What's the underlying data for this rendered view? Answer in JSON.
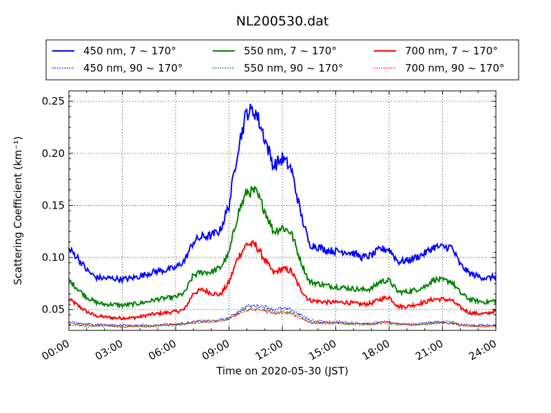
{
  "chart_data": {
    "type": "line",
    "title": "NL200530.dat",
    "xlabel": "Time on 2020-05-30 (JST)",
    "ylabel": "Scattering Coefficient (km⁻¹)",
    "xlim": [
      "00:00",
      "24:00"
    ],
    "ylim": [
      0.03,
      0.26
    ],
    "x_ticks": [
      "00:00",
      "03:00",
      "06:00",
      "09:00",
      "12:00",
      "15:00",
      "18:00",
      "21:00",
      "24:00"
    ],
    "y_ticks": [
      "0.05",
      "0.10",
      "0.15",
      "0.20",
      "0.25"
    ],
    "grid": true,
    "legend_position": "top",
    "x": [
      "00:00",
      "00:30",
      "01:00",
      "01:30",
      "02:00",
      "02:30",
      "03:00",
      "03:30",
      "04:00",
      "04:30",
      "05:00",
      "05:30",
      "06:00",
      "06:30",
      "07:00",
      "07:30",
      "08:00",
      "08:30",
      "09:00",
      "09:30",
      "10:00",
      "10:30",
      "11:00",
      "11:30",
      "12:00",
      "12:30",
      "13:00",
      "13:30",
      "14:00",
      "14:30",
      "15:00",
      "15:30",
      "16:00",
      "16:30",
      "17:00",
      "17:30",
      "18:00",
      "18:30",
      "19:00",
      "19:30",
      "20:00",
      "20:30",
      "21:00",
      "21:30",
      "22:00",
      "22:30",
      "23:00",
      "23:30",
      "24:00"
    ],
    "series": [
      {
        "name": "450 nm, 7 ~ 170°",
        "color": "#0000ff",
        "style": "solid",
        "values": [
          0.108,
          0.1,
          0.088,
          0.081,
          0.08,
          0.08,
          0.079,
          0.08,
          0.082,
          0.085,
          0.087,
          0.088,
          0.09,
          0.097,
          0.115,
          0.12,
          0.121,
          0.126,
          0.15,
          0.205,
          0.24,
          0.24,
          0.215,
          0.188,
          0.195,
          0.185,
          0.145,
          0.113,
          0.11,
          0.107,
          0.106,
          0.106,
          0.104,
          0.1,
          0.102,
          0.108,
          0.108,
          0.096,
          0.097,
          0.1,
          0.104,
          0.11,
          0.11,
          0.11,
          0.093,
          0.085,
          0.082,
          0.08,
          0.082
        ]
      },
      {
        "name": "450 nm, 90 ~ 170°",
        "color": "#0000ff",
        "style": "dotted",
        "values": [
          0.038,
          0.037,
          0.036,
          0.036,
          0.035,
          0.035,
          0.035,
          0.035,
          0.035,
          0.035,
          0.035,
          0.036,
          0.036,
          0.037,
          0.038,
          0.039,
          0.039,
          0.04,
          0.042,
          0.048,
          0.053,
          0.054,
          0.053,
          0.05,
          0.051,
          0.05,
          0.045,
          0.04,
          0.039,
          0.038,
          0.038,
          0.038,
          0.037,
          0.037,
          0.037,
          0.038,
          0.038,
          0.036,
          0.036,
          0.036,
          0.037,
          0.038,
          0.038,
          0.038,
          0.036,
          0.035,
          0.035,
          0.035,
          0.035
        ]
      },
      {
        "name": "550 nm, 7 ~ 170°",
        "color": "#008000",
        "style": "solid",
        "values": [
          0.078,
          0.07,
          0.062,
          0.057,
          0.055,
          0.055,
          0.054,
          0.055,
          0.056,
          0.058,
          0.06,
          0.061,
          0.062,
          0.066,
          0.083,
          0.086,
          0.086,
          0.09,
          0.104,
          0.142,
          0.163,
          0.163,
          0.146,
          0.125,
          0.129,
          0.124,
          0.098,
          0.077,
          0.075,
          0.073,
          0.072,
          0.071,
          0.07,
          0.069,
          0.07,
          0.077,
          0.078,
          0.067,
          0.067,
          0.069,
          0.072,
          0.079,
          0.078,
          0.077,
          0.066,
          0.06,
          0.058,
          0.057,
          0.059
        ]
      },
      {
        "name": "550 nm, 90 ~ 170°",
        "color": "#008000",
        "style": "dotted",
        "values": [
          0.036,
          0.035,
          0.034,
          0.034,
          0.034,
          0.034,
          0.033,
          0.034,
          0.034,
          0.034,
          0.034,
          0.035,
          0.035,
          0.036,
          0.037,
          0.038,
          0.038,
          0.039,
          0.041,
          0.046,
          0.05,
          0.051,
          0.05,
          0.047,
          0.048,
          0.047,
          0.043,
          0.038,
          0.037,
          0.037,
          0.037,
          0.036,
          0.036,
          0.036,
          0.036,
          0.037,
          0.037,
          0.035,
          0.035,
          0.035,
          0.036,
          0.037,
          0.037,
          0.037,
          0.035,
          0.034,
          0.034,
          0.034,
          0.034
        ]
      },
      {
        "name": "700 nm, 7 ~ 170°",
        "color": "#ff0000",
        "style": "solid",
        "values": [
          0.06,
          0.054,
          0.048,
          0.044,
          0.043,
          0.042,
          0.042,
          0.042,
          0.043,
          0.045,
          0.046,
          0.047,
          0.048,
          0.05,
          0.066,
          0.069,
          0.066,
          0.064,
          0.076,
          0.1,
          0.113,
          0.112,
          0.098,
          0.085,
          0.089,
          0.087,
          0.07,
          0.059,
          0.058,
          0.057,
          0.057,
          0.057,
          0.056,
          0.055,
          0.056,
          0.06,
          0.062,
          0.053,
          0.053,
          0.055,
          0.057,
          0.06,
          0.06,
          0.059,
          0.052,
          0.047,
          0.046,
          0.046,
          0.049
        ]
      },
      {
        "name": "700 nm, 90 ~ 170°",
        "color": "#ff0000",
        "style": "dotted",
        "values": [
          0.037,
          0.036,
          0.035,
          0.035,
          0.035,
          0.034,
          0.034,
          0.034,
          0.034,
          0.034,
          0.035,
          0.035,
          0.036,
          0.036,
          0.038,
          0.039,
          0.039,
          0.039,
          0.041,
          0.046,
          0.049,
          0.05,
          0.049,
          0.046,
          0.047,
          0.046,
          0.042,
          0.038,
          0.037,
          0.037,
          0.037,
          0.037,
          0.036,
          0.036,
          0.036,
          0.037,
          0.038,
          0.036,
          0.036,
          0.036,
          0.036,
          0.037,
          0.038,
          0.037,
          0.035,
          0.035,
          0.034,
          0.034,
          0.035
        ]
      }
    ]
  }
}
